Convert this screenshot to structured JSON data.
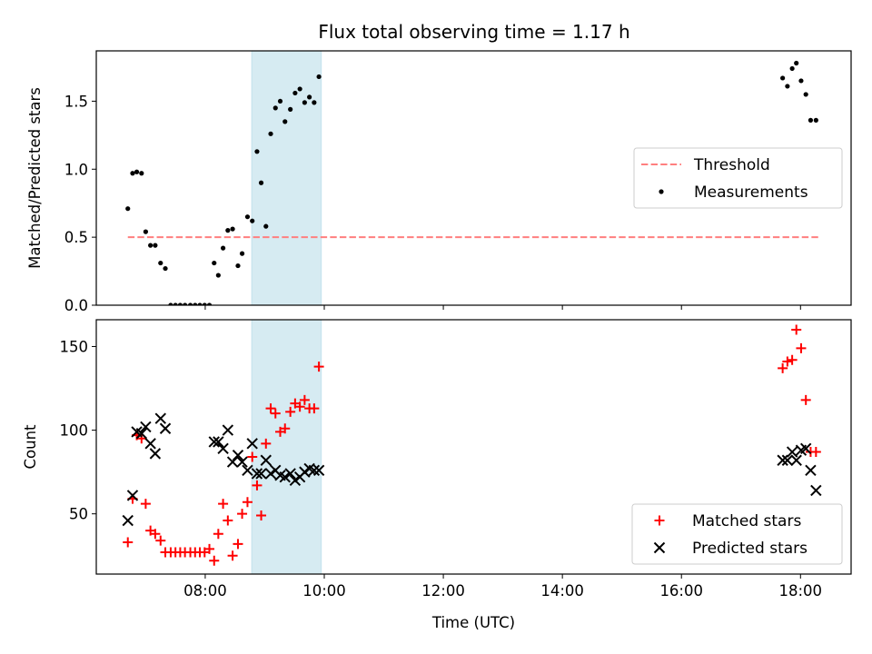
{
  "title": "Flux total observing time = 1.17 h",
  "colors": {
    "threshold": "#ff7f7f",
    "measurements": "#000000",
    "matched": "#ff0000",
    "predicted": "#000000",
    "highlight": "#add8e6"
  },
  "chart_data": [
    {
      "type": "scatter",
      "ylabel": "Matched/Predicted stars",
      "xlim": [
        6.17,
        18.85
      ],
      "ylim": [
        0.0,
        1.87
      ],
      "yticks": [
        0.0,
        0.5,
        1.0,
        1.5
      ],
      "ytick_labels": [
        "0.0",
        "0.5",
        "1.0",
        "1.5"
      ],
      "highlight_span": [
        8.78,
        9.95
      ],
      "legend": {
        "placement": "center-right",
        "entries": [
          "Threshold",
          "Measurements"
        ]
      },
      "threshold": {
        "name": "Threshold",
        "x": [
          6.7,
          18.3
        ],
        "y": [
          0.5,
          0.5
        ],
        "style": "dashed"
      },
      "series": [
        {
          "name": "Measurements",
          "marker": "dot",
          "x": [
            6.7,
            6.78,
            6.85,
            6.93,
            7.0,
            7.08,
            7.16,
            7.25,
            7.33,
            7.42,
            7.5,
            7.58,
            7.66,
            7.75,
            7.83,
            7.91,
            7.99,
            8.07,
            8.15,
            8.22,
            8.3,
            8.38,
            8.46,
            8.55,
            8.62,
            8.71,
            8.79,
            8.87,
            8.94,
            9.02,
            9.1,
            9.18,
            9.26,
            9.34,
            9.43,
            9.51,
            9.59,
            9.67,
            9.75,
            9.83,
            9.91,
            17.7,
            17.78,
            17.86,
            17.93,
            18.01,
            18.09,
            18.17,
            18.26
          ],
          "y": [
            0.71,
            0.97,
            0.98,
            0.97,
            0.54,
            0.44,
            0.44,
            0.31,
            0.27,
            0.0,
            0.0,
            0.0,
            0.0,
            0.0,
            0.0,
            0.0,
            0.0,
            0.0,
            0.31,
            0.22,
            0.42,
            0.55,
            0.56,
            0.29,
            0.38,
            0.65,
            0.62,
            1.13,
            0.9,
            0.58,
            1.26,
            1.45,
            1.5,
            1.35,
            1.44,
            1.56,
            1.59,
            1.49,
            1.53,
            1.49,
            1.68,
            1.67,
            1.61,
            1.74,
            1.78,
            1.65,
            1.55,
            1.36,
            1.36
          ]
        }
      ]
    },
    {
      "type": "scatter",
      "ylabel": "Count",
      "xlabel": "Time (UTC)",
      "xlim": [
        6.17,
        18.85
      ],
      "ylim": [
        14,
        166
      ],
      "xticks": [
        8,
        10,
        12,
        14,
        16,
        18
      ],
      "xtick_labels": [
        "08:00",
        "10:00",
        "12:00",
        "14:00",
        "16:00",
        "18:00"
      ],
      "yticks": [
        50,
        100,
        150
      ],
      "ytick_labels": [
        "50",
        "100",
        "150"
      ],
      "highlight_span": [
        8.78,
        9.95
      ],
      "legend": {
        "placement": "lower-right",
        "entries": [
          "Matched stars",
          "Predicted stars"
        ]
      },
      "series": [
        {
          "name": "Matched stars",
          "marker": "plus",
          "x": [
            6.7,
            6.78,
            6.85,
            6.93,
            7.0,
            7.08,
            7.16,
            7.25,
            7.33,
            7.42,
            7.5,
            7.58,
            7.66,
            7.75,
            7.83,
            7.91,
            7.99,
            8.07,
            8.15,
            8.22,
            8.3,
            8.38,
            8.46,
            8.55,
            8.62,
            8.71,
            8.79,
            8.87,
            8.94,
            9.02,
            9.1,
            9.18,
            9.26,
            9.34,
            9.43,
            9.51,
            9.59,
            9.67,
            9.75,
            9.83,
            9.91,
            17.7,
            17.78,
            17.86,
            17.93,
            18.01,
            18.09,
            18.17,
            18.26
          ],
          "y": [
            33,
            59,
            97,
            95,
            56,
            40,
            38,
            34,
            27,
            27,
            27,
            27,
            27,
            27,
            27,
            27,
            27,
            29,
            22,
            38,
            56,
            46,
            25,
            32,
            50,
            57,
            84,
            67,
            49,
            92,
            113,
            110,
            99,
            101,
            111,
            116,
            114,
            118,
            113,
            113,
            138,
            137,
            141,
            142,
            160,
            149,
            118,
            87,
            87
          ]
        },
        {
          "name": "Predicted stars",
          "marker": "x",
          "x": [
            6.7,
            6.78,
            6.85,
            6.93,
            7.0,
            7.08,
            7.16,
            7.25,
            7.33,
            8.15,
            8.22,
            8.3,
            8.38,
            8.46,
            8.55,
            8.62,
            8.71,
            8.79,
            8.87,
            8.94,
            9.02,
            9.1,
            9.18,
            9.26,
            9.34,
            9.43,
            9.51,
            9.59,
            9.67,
            9.75,
            9.83,
            9.91,
            17.7,
            17.78,
            17.86,
            17.93,
            18.01,
            18.09,
            18.17,
            18.26
          ],
          "y": [
            46,
            61,
            99,
            98,
            102,
            92,
            86,
            107,
            101,
            93,
            93,
            89,
            100,
            81,
            85,
            81,
            76,
            92,
            74,
            74,
            82,
            74,
            76,
            73,
            72,
            74,
            70,
            72,
            75,
            77,
            76,
            76,
            82,
            82,
            87,
            82,
            88,
            89,
            76,
            64
          ]
        }
      ]
    }
  ]
}
